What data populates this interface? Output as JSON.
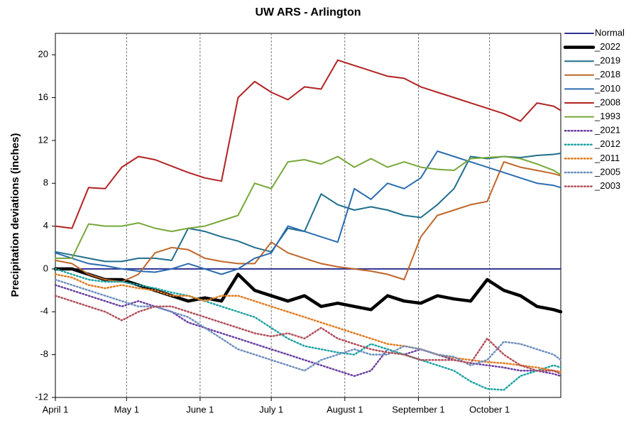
{
  "chart_data": {
    "type": "line",
    "title": "UW ARS - Arlington",
    "y_label": "Precipitation deviations (inches)",
    "x": [
      0,
      7,
      14,
      21,
      28,
      35,
      42,
      49,
      56,
      63,
      70,
      77,
      84,
      91,
      98,
      105,
      112,
      119,
      126,
      133,
      140,
      147,
      154,
      161,
      168,
      175,
      182,
      189,
      196,
      203,
      210,
      213
    ],
    "xlim": [
      0,
      213
    ],
    "xticks": [
      {
        "value": 0,
        "label": "April 1"
      },
      {
        "value": 30,
        "label": "May 1"
      },
      {
        "value": 61,
        "label": "June 1"
      },
      {
        "value": 91,
        "label": "July 1"
      },
      {
        "value": 122,
        "label": "August 1"
      },
      {
        "value": 153,
        "label": "September 1"
      },
      {
        "value": 183,
        "label": "October 1"
      }
    ],
    "ylim": [
      -12,
      22
    ],
    "yticks": [
      -12,
      -8,
      -4,
      0,
      4,
      8,
      12,
      16,
      20
    ],
    "grid": "x",
    "legend": "right",
    "series": [
      {
        "name": "Normal",
        "color": "#2e3192",
        "style": "solid",
        "values": [
          0,
          0,
          0,
          0,
          0,
          0,
          0,
          0,
          0,
          0,
          0,
          0,
          0,
          0,
          0,
          0,
          0,
          0,
          0,
          0,
          0,
          0,
          0,
          0,
          0,
          0,
          0,
          0,
          0,
          0,
          0,
          0
        ]
      },
      {
        "name": "_2022",
        "color": "#000000",
        "style": "bold",
        "values": [
          0,
          0,
          -0.5,
          -1,
          -1,
          -1.5,
          -2,
          -2.5,
          -3,
          -2.7,
          -3,
          -0.5,
          -2,
          -2.5,
          -3,
          -2.5,
          -3.5,
          -3.2,
          -3.5,
          -3.8,
          -2.5,
          -3,
          -3.2,
          -2.5,
          -2.8,
          -3,
          -1,
          -2,
          -2.5,
          -3.5,
          -3.8,
          -4
        ]
      },
      {
        "name": "_2019",
        "color": "#1f6e8c",
        "style": "solid",
        "values": [
          1.6,
          1.3,
          1,
          0.7,
          0.7,
          1,
          1,
          0.8,
          3.8,
          3.5,
          3,
          2.6,
          2,
          1.6,
          3.8,
          3.5,
          7,
          6,
          5.5,
          5.8,
          5.5,
          5,
          4.8,
          6,
          7.5,
          10.5,
          10.3,
          10.5,
          10.4,
          10.6,
          10.7,
          10.8
        ]
      },
      {
        "name": "_2018",
        "color": "#c0662a",
        "style": "solid",
        "values": [
          0.8,
          0.5,
          -0.5,
          -1,
          -1.2,
          -0.5,
          1.5,
          2,
          1.8,
          1,
          0.7,
          0.5,
          0.5,
          2.5,
          1.5,
          1,
          0.5,
          0.2,
          0,
          -0.2,
          -0.5,
          -1,
          3,
          5,
          5.5,
          6,
          6.3,
          10,
          9.5,
          9.2,
          8.9,
          8.7
        ]
      },
      {
        "name": "_2010",
        "color": "#2b6cb0",
        "style": "solid",
        "values": [
          1.5,
          1,
          0.5,
          0.3,
          0,
          -0.2,
          -0.3,
          0,
          0.5,
          0,
          -0.5,
          0,
          1,
          1.5,
          4,
          3.5,
          3,
          2.5,
          7.5,
          6.5,
          8,
          7.5,
          8.5,
          11,
          10.5,
          10,
          9.5,
          9,
          8.5,
          8,
          7.8,
          7.6
        ]
      },
      {
        "name": "_2008",
        "color": "#b22222",
        "style": "solid",
        "values": [
          4,
          3.8,
          7.6,
          7.5,
          9.5,
          10.5,
          10.2,
          9.6,
          9,
          8.5,
          8.2,
          16,
          17.5,
          16.5,
          15.8,
          17,
          16.8,
          19.5,
          19,
          18.5,
          18,
          17.8,
          17,
          16.5,
          16,
          15.5,
          15,
          14.5,
          13.8,
          15.5,
          15.2,
          14.8
        ]
      },
      {
        "name": "_1993",
        "color": "#77a83a",
        "style": "solid",
        "values": [
          1,
          1,
          4.2,
          4,
          4,
          4.3,
          3.8,
          3.5,
          3.8,
          4,
          4.5,
          5,
          8,
          7.5,
          10,
          10.2,
          9.8,
          10.5,
          9.5,
          10.3,
          9.5,
          10,
          9.5,
          9.3,
          9.2,
          10.3,
          10.4,
          10.5,
          10.3,
          9.8,
          9.2,
          8.8
        ]
      },
      {
        "name": "_2021",
        "color": "#6b3fa0",
        "style": "dotted",
        "values": [
          -1.5,
          -2,
          -2.5,
          -3,
          -3.5,
          -3,
          -3.5,
          -4,
          -5,
          -5.5,
          -6,
          -6.5,
          -7,
          -7.5,
          -8,
          -8.5,
          -9,
          -9.5,
          -10,
          -9.5,
          -7.5,
          -8,
          -7.5,
          -8,
          -8.5,
          -8.8,
          -9,
          -9.2,
          -9.5,
          -9.5,
          -9.8,
          -10
        ]
      },
      {
        "name": "_2012",
        "color": "#1fa3a3",
        "style": "dotted",
        "values": [
          0,
          -0.5,
          -1,
          -1.2,
          -1.2,
          -1.5,
          -1.8,
          -2.2,
          -2.5,
          -3,
          -3.5,
          -4,
          -4.5,
          -5.5,
          -6.5,
          -7.2,
          -7.5,
          -7.8,
          -8,
          -7,
          -7.5,
          -8,
          -8.5,
          -9,
          -9.5,
          -10.5,
          -11.2,
          -11.3,
          -10,
          -9.5,
          -9,
          -9.2
        ]
      },
      {
        "name": "_2011",
        "color": "#e07b20",
        "style": "dotted",
        "values": [
          -0.5,
          -0.8,
          -1.5,
          -1.8,
          -1.5,
          -1.8,
          -2,
          -2.5,
          -2.5,
          -3,
          -2.5,
          -2.5,
          -3,
          -3.5,
          -4,
          -4.5,
          -5,
          -5.5,
          -6,
          -6.5,
          -7,
          -7.2,
          -7.5,
          -8,
          -8.3,
          -8.5,
          -8.7,
          -8.8,
          -9,
          -9.2,
          -9.5,
          -9.6
        ]
      },
      {
        "name": "_2005",
        "color": "#6f8fbf",
        "style": "dotted",
        "values": [
          -1,
          -1.5,
          -2,
          -2.5,
          -3,
          -3.5,
          -3.5,
          -4,
          -4.5,
          -5.5,
          -6.5,
          -7.5,
          -8,
          -8.5,
          -9,
          -9.5,
          -8.5,
          -8,
          -7.5,
          -8,
          -8,
          -7.2,
          -7.5,
          -8,
          -8.2,
          -9,
          -8.5,
          -6.8,
          -7,
          -7.5,
          -8,
          -8.5
        ]
      },
      {
        "name": "_2003",
        "color": "#b0505a",
        "style": "dotted",
        "values": [
          -2.5,
          -3,
          -3.5,
          -4,
          -4.8,
          -4,
          -3.5,
          -3.5,
          -4,
          -4.5,
          -5,
          -5.5,
          -6,
          -6.3,
          -6,
          -6.5,
          -5.5,
          -6.5,
          -7,
          -7.5,
          -7.8,
          -8,
          -8.5,
          -8.5,
          -8.5,
          -8.8,
          -6.5,
          -8,
          -9,
          -9.5,
          -9.5,
          -9.8
        ]
      }
    ]
  }
}
